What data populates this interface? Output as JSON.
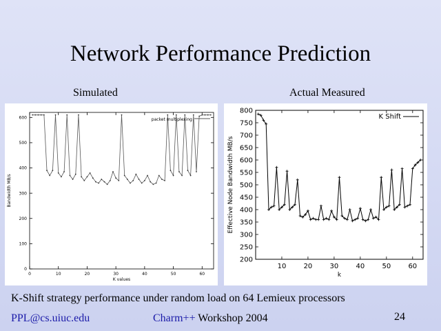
{
  "slide": {
    "title": "Network Performance Prediction",
    "left_label": "Simulated",
    "right_label": "Actual Measured",
    "caption": "K-Shift strategy performance under random load on 64 Lemieux processors",
    "footer_email": "PPL@cs.uiuc.edu",
    "footer_charm": "Charm++",
    "footer_workshop": " Workshop 2004",
    "page_number": "24"
  },
  "colors": {
    "background": "#d4d9f3",
    "footer_blue": "#1a1aa8"
  },
  "chart_data": [
    {
      "type": "line",
      "title": "",
      "xlabel": "K values",
      "ylabel": "Bandwidth MB/s",
      "xlim": [
        0,
        64
      ],
      "ylim": [
        0,
        620
      ],
      "xticks": [
        "0",
        "10",
        "20",
        "30",
        "40",
        "50",
        "60"
      ],
      "yticks": [
        "0",
        "100",
        "200",
        "300",
        "400",
        "500",
        "600"
      ],
      "legend_position": "top-right",
      "series": [
        {
          "name": "packet multiplexing",
          "x": [
            1,
            2,
            3,
            4,
            5,
            6,
            7,
            8,
            9,
            10,
            11,
            12,
            13,
            14,
            15,
            16,
            17,
            18,
            19,
            20,
            21,
            22,
            23,
            24,
            25,
            26,
            27,
            28,
            29,
            30,
            31,
            32,
            33,
            34,
            35,
            36,
            37,
            38,
            39,
            40,
            41,
            42,
            43,
            44,
            45,
            46,
            47,
            48,
            49,
            50,
            51,
            52,
            53,
            54,
            55,
            56,
            57,
            58,
            59,
            60,
            61,
            62,
            63
          ],
          "y": [
            610,
            610,
            610,
            610,
            610,
            390,
            370,
            390,
            610,
            380,
            365,
            385,
            610,
            370,
            355,
            375,
            610,
            365,
            350,
            365,
            380,
            360,
            345,
            340,
            355,
            345,
            335,
            350,
            385,
            360,
            350,
            610,
            370,
            355,
            340,
            350,
            375,
            355,
            340,
            350,
            370,
            345,
            335,
            340,
            370,
            355,
            350,
            610,
            390,
            370,
            610,
            385,
            370,
            610,
            390,
            370,
            610,
            385,
            605,
            610,
            610,
            610,
            610
          ]
        }
      ]
    },
    {
      "type": "line",
      "title": "",
      "xlabel": "k",
      "ylabel": "Effective Node Bandwidth MB/s",
      "xlim": [
        0,
        64
      ],
      "ylim": [
        200,
        800
      ],
      "xticks": [
        "10",
        "20",
        "30",
        "40",
        "50",
        "60"
      ],
      "yticks": [
        "200",
        "250",
        "300",
        "350",
        "400",
        "450",
        "500",
        "550",
        "600",
        "650",
        "700",
        "750",
        "800"
      ],
      "legend_position": "top-right",
      "series": [
        {
          "name": "K Shift",
          "x": [
            1,
            2,
            3,
            4,
            5,
            6,
            7,
            8,
            9,
            10,
            11,
            12,
            13,
            14,
            15,
            16,
            17,
            18,
            19,
            20,
            21,
            22,
            23,
            24,
            25,
            26,
            27,
            28,
            29,
            30,
            31,
            32,
            33,
            34,
            35,
            36,
            37,
            38,
            39,
            40,
            41,
            42,
            43,
            44,
            45,
            46,
            47,
            48,
            49,
            50,
            51,
            52,
            53,
            54,
            55,
            56,
            57,
            58,
            59,
            60,
            61,
            62,
            63
          ],
          "y": [
            785,
            780,
            760,
            745,
            400,
            410,
            415,
            570,
            400,
            410,
            420,
            555,
            400,
            410,
            420,
            520,
            375,
            370,
            380,
            395,
            360,
            365,
            360,
            360,
            415,
            360,
            365,
            360,
            395,
            370,
            360,
            530,
            375,
            365,
            360,
            400,
            355,
            360,
            365,
            405,
            360,
            355,
            360,
            400,
            365,
            370,
            360,
            530,
            400,
            410,
            415,
            560,
            400,
            410,
            420,
            565,
            410,
            415,
            420,
            565,
            580,
            590,
            600
          ]
        }
      ]
    }
  ]
}
